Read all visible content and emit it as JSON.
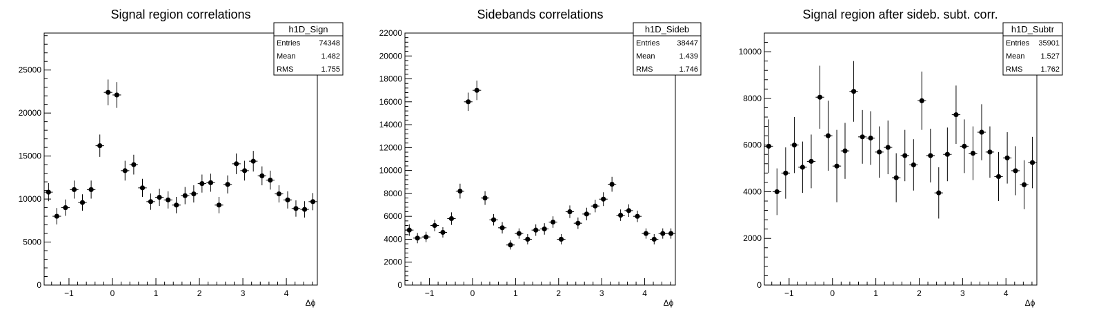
{
  "chart_data": [
    {
      "type": "scatter",
      "title": "Signal region correlations",
      "xlabel": "Δϕ",
      "ylabel": "",
      "xlim": [
        -1.5708,
        4.7124
      ],
      "ylim": [
        0,
        29300
      ],
      "xticks": [
        -1,
        0,
        1,
        2,
        3,
        4
      ],
      "yticks": [
        0,
        5000,
        10000,
        15000,
        20000,
        25000
      ],
      "ytick_labels": [
        "0",
        "5000",
        "10000",
        "15000",
        "20000",
        "25000"
      ],
      "stats": {
        "name": "h1D_Sign",
        "entries": "74348",
        "mean": "1.482",
        "rms": "1.755"
      },
      "x": [
        -1.47,
        -1.28,
        -1.08,
        -0.88,
        -0.69,
        -0.49,
        -0.29,
        -0.1,
        0.1,
        0.29,
        0.49,
        0.69,
        0.88,
        1.08,
        1.28,
        1.47,
        1.67,
        1.87,
        2.06,
        2.26,
        2.45,
        2.65,
        2.85,
        3.04,
        3.24,
        3.44,
        3.63,
        3.83,
        4.03,
        4.22,
        4.42,
        4.61
      ],
      "y": [
        10800,
        8000,
        9000,
        11100,
        9600,
        11100,
        16200,
        22400,
        22100,
        13300,
        14000,
        11300,
        9700,
        10200,
        9900,
        9300,
        10400,
        10600,
        11800,
        11900,
        9300,
        11700,
        14100,
        13300,
        14400,
        12700,
        12200,
        10600,
        9900,
        8900,
        8800,
        9700
      ],
      "yerr": [
        1050,
        950,
        950,
        1050,
        950,
        1050,
        1300,
        1500,
        1500,
        1150,
        1150,
        1050,
        950,
        1000,
        1000,
        950,
        1000,
        1000,
        1050,
        1050,
        950,
        1050,
        1200,
        1150,
        1200,
        1100,
        1100,
        1000,
        1000,
        950,
        950,
        1000
      ]
    },
    {
      "type": "scatter",
      "title": "Sidebands correlations",
      "xlabel": "Δϕ",
      "ylabel": "",
      "xlim": [
        -1.5708,
        4.7124
      ],
      "ylim": [
        0,
        22000
      ],
      "xticks": [
        -1,
        0,
        1,
        2,
        3,
        4
      ],
      "yticks": [
        0,
        2000,
        4000,
        6000,
        8000,
        10000,
        12000,
        14000,
        16000,
        18000,
        20000,
        22000
      ],
      "ytick_labels": [
        "0",
        "2000",
        "4000",
        "6000",
        "8000",
        "10000",
        "12000",
        "14000",
        "16000",
        "18000",
        "20000",
        "22000"
      ],
      "stats": {
        "name": "h1D_Sideb",
        "entries": "38447",
        "mean": "1.439",
        "rms": "1.746"
      },
      "x": [
        -1.47,
        -1.28,
        -1.08,
        -0.88,
        -0.69,
        -0.49,
        -0.29,
        -0.1,
        0.1,
        0.29,
        0.49,
        0.69,
        0.88,
        1.08,
        1.28,
        1.47,
        1.67,
        1.87,
        2.06,
        2.26,
        2.45,
        2.65,
        2.85,
        3.04,
        3.24,
        3.44,
        3.63,
        3.83,
        4.03,
        4.22,
        4.42,
        4.61
      ],
      "y": [
        4800,
        4100,
        4200,
        5200,
        4600,
        5800,
        8200,
        16000,
        17000,
        7600,
        5700,
        5000,
        3500,
        4500,
        4000,
        4800,
        4900,
        5500,
        4000,
        6400,
        5400,
        6200,
        6900,
        7500,
        8800,
        6100,
        6500,
        6000,
        4500,
        4000,
        4500,
        4500
      ],
      "yerr": [
        500,
        450,
        450,
        500,
        450,
        550,
        650,
        800,
        850,
        600,
        500,
        500,
        400,
        450,
        450,
        500,
        500,
        500,
        450,
        550,
        500,
        550,
        550,
        600,
        650,
        500,
        550,
        500,
        450,
        450,
        450,
        450
      ]
    },
    {
      "type": "scatter",
      "title": "Signal region after sideb. subt. corr.",
      "xlabel": "Δϕ",
      "ylabel": "",
      "xlim": [
        -1.5708,
        4.7124
      ],
      "ylim": [
        0,
        10800
      ],
      "xticks": [
        -1,
        0,
        1,
        2,
        3,
        4
      ],
      "yticks": [
        0,
        2000,
        4000,
        6000,
        8000,
        10000
      ],
      "ytick_labels": [
        "0",
        "2000",
        "4000",
        "6000",
        "8000",
        "10000"
      ],
      "stats": {
        "name": "h1D_Subtr",
        "entries": "35901",
        "mean": "1.527",
        "rms": "1.762"
      },
      "x": [
        -1.47,
        -1.28,
        -1.08,
        -0.88,
        -0.69,
        -0.49,
        -0.29,
        -0.1,
        0.1,
        0.29,
        0.49,
        0.69,
        0.88,
        1.08,
        1.28,
        1.47,
        1.67,
        1.87,
        2.06,
        2.26,
        2.45,
        2.65,
        2.85,
        3.04,
        3.24,
        3.44,
        3.63,
        3.83,
        4.03,
        4.22,
        4.42,
        4.61
      ],
      "y": [
        5950,
        4000,
        4800,
        6000,
        5050,
        5300,
        8050,
        6400,
        5100,
        5750,
        8300,
        6350,
        6300,
        5700,
        5900,
        4600,
        5550,
        5150,
        7900,
        5550,
        3950,
        5600,
        7300,
        5950,
        5650,
        6550,
        5700,
        4650,
        5450,
        4900,
        4300,
        5250
      ],
      "yerr": [
        1150,
        1000,
        1100,
        1200,
        1100,
        1150,
        1350,
        1500,
        1550,
        1200,
        1300,
        1150,
        1150,
        1100,
        1150,
        1050,
        1100,
        1100,
        1250,
        1150,
        1100,
        1150,
        1250,
        1150,
        1150,
        1200,
        1100,
        1050,
        1100,
        1050,
        1050,
        1100
      ]
    }
  ]
}
